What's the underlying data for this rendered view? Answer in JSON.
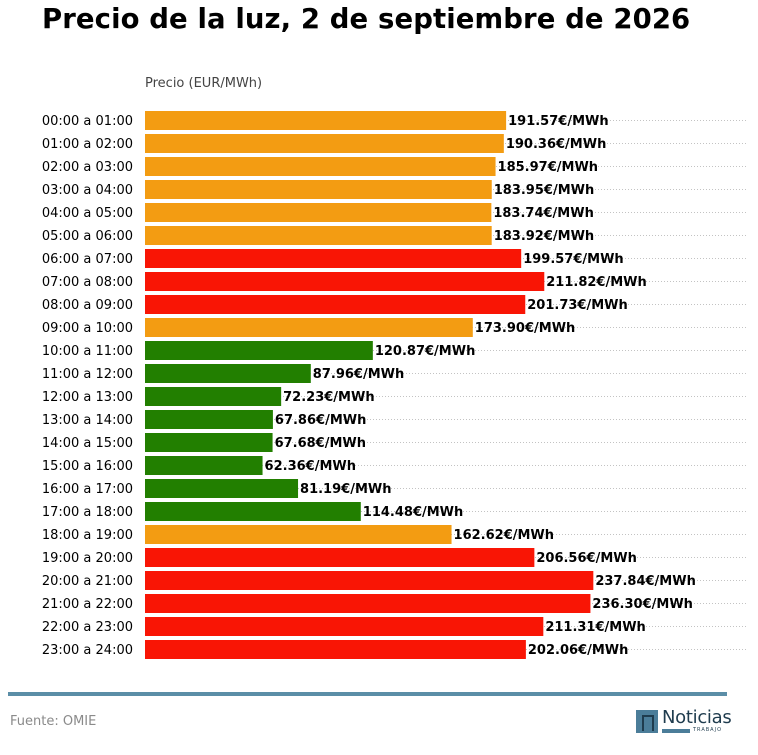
{
  "chart_data": {
    "type": "bar",
    "orientation": "horizontal",
    "title": "Precio de la luz, 2 de septiembre de 2026",
    "xlabel": "Precio (EUR/MWh)",
    "ylabel": "",
    "xlim": [
      0,
      260
    ],
    "grid": "horizontal dotted",
    "value_suffix": "€/MWh",
    "colors": {
      "high": "#f91505",
      "medium": "#f39c12",
      "low": "#227f00"
    },
    "categories": [
      "00:00 a 01:00",
      "01:00 a 02:00",
      "02:00 a 03:00",
      "03:00 a 04:00",
      "04:00 a 05:00",
      "05:00 a 06:00",
      "06:00 a 07:00",
      "07:00 a 08:00",
      "08:00 a 09:00",
      "09:00 a 10:00",
      "10:00 a 11:00",
      "11:00 a 12:00",
      "12:00 a 13:00",
      "13:00 a 14:00",
      "14:00 a 15:00",
      "15:00 a 16:00",
      "16:00 a 17:00",
      "17:00 a 18:00",
      "18:00 a 19:00",
      "19:00 a 20:00",
      "20:00 a 21:00",
      "21:00 a 22:00",
      "22:00 a 23:00",
      "23:00 a 24:00"
    ],
    "values": [
      191.57,
      190.36,
      185.97,
      183.95,
      183.74,
      183.92,
      199.57,
      211.82,
      201.73,
      173.9,
      120.87,
      87.96,
      72.23,
      67.86,
      67.68,
      62.36,
      81.19,
      114.48,
      162.62,
      206.56,
      237.84,
      236.3,
      211.31,
      202.06
    ],
    "value_labels": [
      "191.57€/MWh",
      "190.36€/MWh",
      "185.97€/MWh",
      "183.95€/MWh",
      "183.74€/MWh",
      "183.92€/MWh",
      "199.57€/MWh",
      "211.82€/MWh",
      "201.73€/MWh",
      "173.90€/MWh",
      "120.87€/MWh",
      "87.96€/MWh",
      "72.23€/MWh",
      "67.86€/MWh",
      "67.68€/MWh",
      "62.36€/MWh",
      "81.19€/MWh",
      "114.48€/MWh",
      "162.62€/MWh",
      "206.56€/MWh",
      "237.84€/MWh",
      "236.30€/MWh",
      "211.31€/MWh",
      "202.06€/MWh"
    ],
    "bar_colors": [
      "medium",
      "medium",
      "medium",
      "medium",
      "medium",
      "medium",
      "high",
      "high",
      "high",
      "medium",
      "low",
      "low",
      "low",
      "low",
      "low",
      "low",
      "low",
      "low",
      "medium",
      "high",
      "high",
      "high",
      "high",
      "high"
    ]
  },
  "footer": {
    "source": "Fuente: OMIE",
    "logo_text": "Noticias",
    "logo_subtext": "TRABAJO"
  }
}
